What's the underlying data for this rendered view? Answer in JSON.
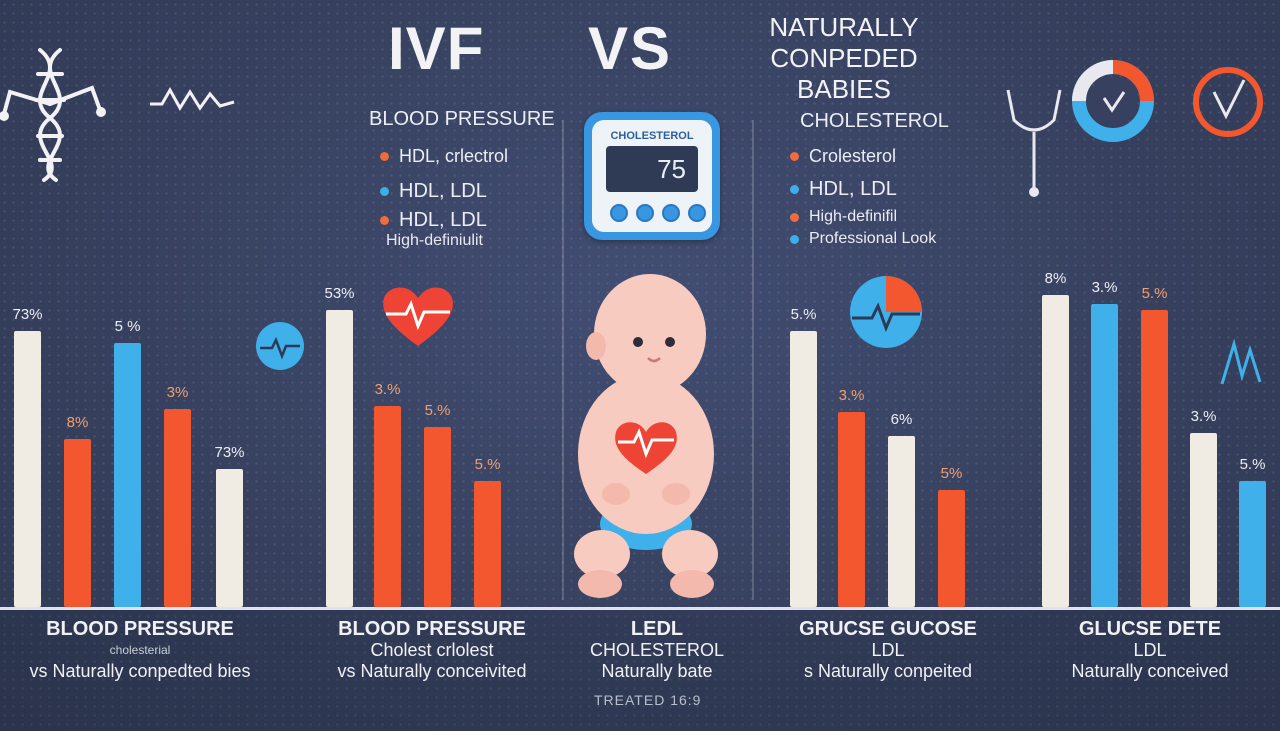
{
  "header": {
    "ivf": "IVF",
    "vs": "VS",
    "natural": "NATURALLY CONPEDED BABIES"
  },
  "left_panel": {
    "title": "BLOOD PRESSURE",
    "bullets": [
      {
        "color": "orange",
        "text": "HDL, crlectrol"
      },
      {
        "color": "blue",
        "text": "HDL,  LDL"
      },
      {
        "color": "orange",
        "text": "HDL,    LDL"
      }
    ],
    "note": "High-definiulit"
  },
  "right_panel": {
    "title": "CHOLESTEROL",
    "bullets": [
      {
        "color": "orange",
        "text": "Crolesterol"
      },
      {
        "color": "blue",
        "text": "HDL, LDL"
      },
      {
        "color": "orange",
        "text": "High-definifil"
      },
      {
        "color": "blue",
        "text": "Professional Look"
      }
    ]
  },
  "device": {
    "label": "CHOLESTEROL",
    "value": "75"
  },
  "colors": {
    "white_bar": "#f1ece3",
    "blue_bar": "#3fb0ea",
    "orange_bar": "#f2572f",
    "background": "#37415f"
  },
  "icons": [
    "dna-icon",
    "wave-icon",
    "heartbeat-circle-icon",
    "heart-icon",
    "baby-illustration",
    "gauge-icon",
    "check-circle-icon",
    "stethoscope-icon",
    "wave-a-icon"
  ],
  "chart_data": {
    "type": "bar",
    "ylim": [
      0,
      100
    ],
    "groups": [
      {
        "bars": [
          {
            "value": 92,
            "color": "white",
            "label": "73%"
          },
          {
            "value": 56,
            "color": "orange",
            "label": "8%"
          },
          {
            "value": 88,
            "color": "blue",
            "label": "5 %"
          },
          {
            "value": 66,
            "color": "orange",
            "label": "3%"
          },
          {
            "value": 46,
            "color": "white",
            "label": "73%"
          }
        ]
      },
      {
        "bars": [
          {
            "value": 99,
            "color": "white",
            "label": "53%"
          },
          {
            "value": 67,
            "color": "orange",
            "label": "3.%"
          },
          {
            "value": 60,
            "color": "orange",
            "label": "5.%"
          },
          {
            "value": 42,
            "color": "orange",
            "label": "5.%"
          }
        ]
      },
      {
        "bars": [
          {
            "value": 92,
            "color": "white",
            "label": "5.%"
          },
          {
            "value": 65,
            "color": "orange",
            "label": "3.%"
          },
          {
            "value": 57,
            "color": "white",
            "label": "6%"
          },
          {
            "value": 39,
            "color": "orange",
            "label": "5%"
          }
        ]
      },
      {
        "bars": [
          {
            "value": 104,
            "color": "white",
            "label": "8%"
          },
          {
            "value": 101,
            "color": "blue",
            "label": "3.%"
          },
          {
            "value": 99,
            "color": "orange",
            "label": "5.%"
          },
          {
            "value": 58,
            "color": "white",
            "label": "3.%"
          },
          {
            "value": 42,
            "color": "blue",
            "label": "5.%"
          }
        ]
      }
    ],
    "captions": [
      {
        "l1": "BLOOD PRESSURE",
        "l2": "cholesterial",
        "l3": "vs Naturally conpedted bies"
      },
      {
        "l1": "BLOOD PRESSURE",
        "l2": "Cholest crlolest",
        "l3": "vs Naturally conceivited"
      },
      {
        "l1": "LEDL",
        "l2": "CHOLESTEROL",
        "l3": "Naturally bate"
      },
      {
        "l1": "GRUCSE GUCOSE",
        "l2": "LDL",
        "l3": "s Naturally conpeited"
      },
      {
        "l1": "GLUCSE DETE",
        "l2": "LDL",
        "l3": "Naturally conceived"
      }
    ]
  },
  "footer": {
    "note": "TREATED 16:9"
  }
}
